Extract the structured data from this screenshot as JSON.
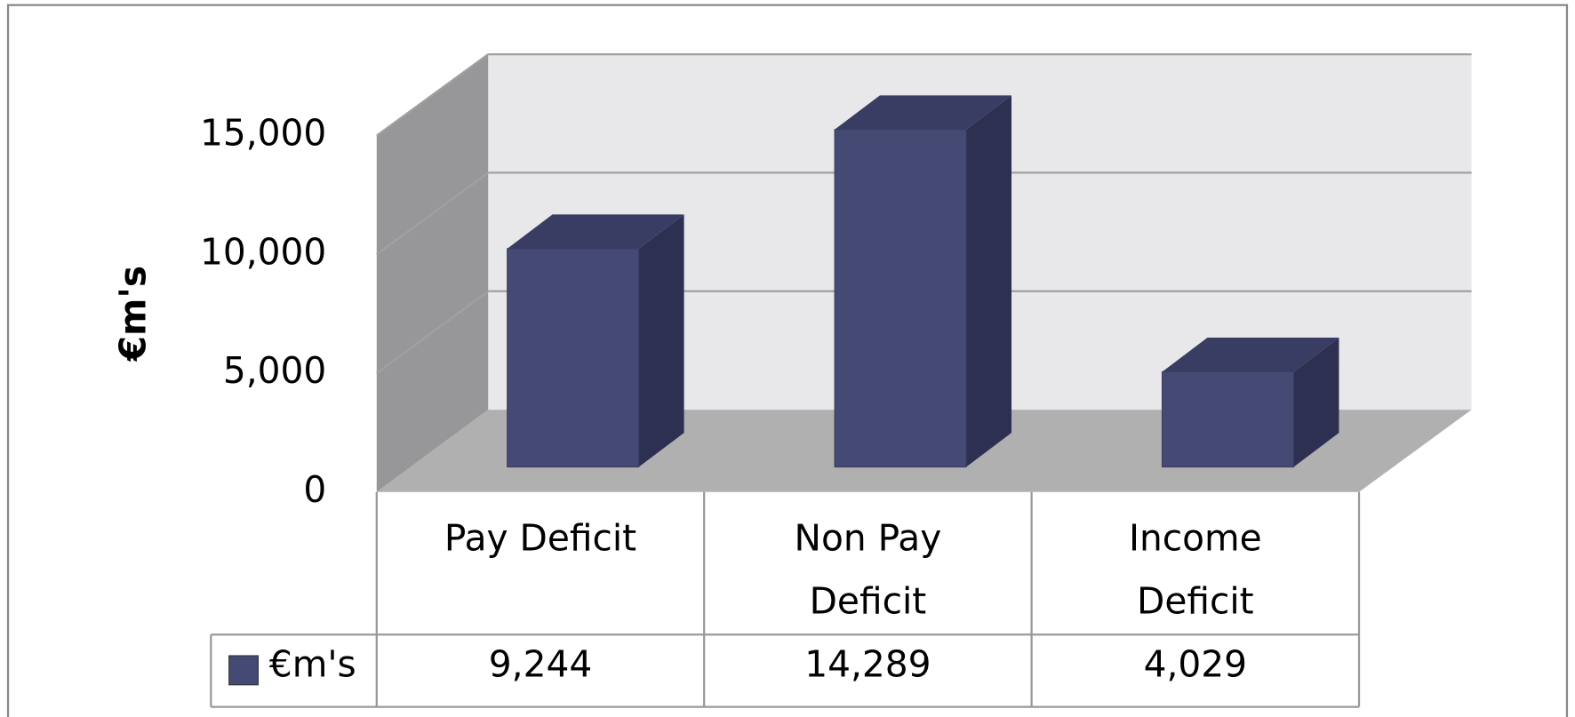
{
  "chart_data": {
    "type": "bar",
    "y_label": "€m's",
    "categories": [
      "Pay Deficit",
      "Non Pay Deficit",
      "Income Deficit"
    ],
    "series": [
      {
        "name": "€m's",
        "color": "#454a75",
        "values": [
          9244,
          14289,
          4029
        ],
        "value_labels": [
          "9,244",
          "14,289",
          "4,029"
        ]
      }
    ],
    "ylim": [
      0,
      15000
    ],
    "yticks": [
      0,
      {
        "value": 5000,
        "label": "5,000"
      },
      {
        "value": 10000,
        "label": "10,000"
      },
      {
        "value": 15000,
        "label": "15,000"
      }
    ],
    "grid": true
  }
}
